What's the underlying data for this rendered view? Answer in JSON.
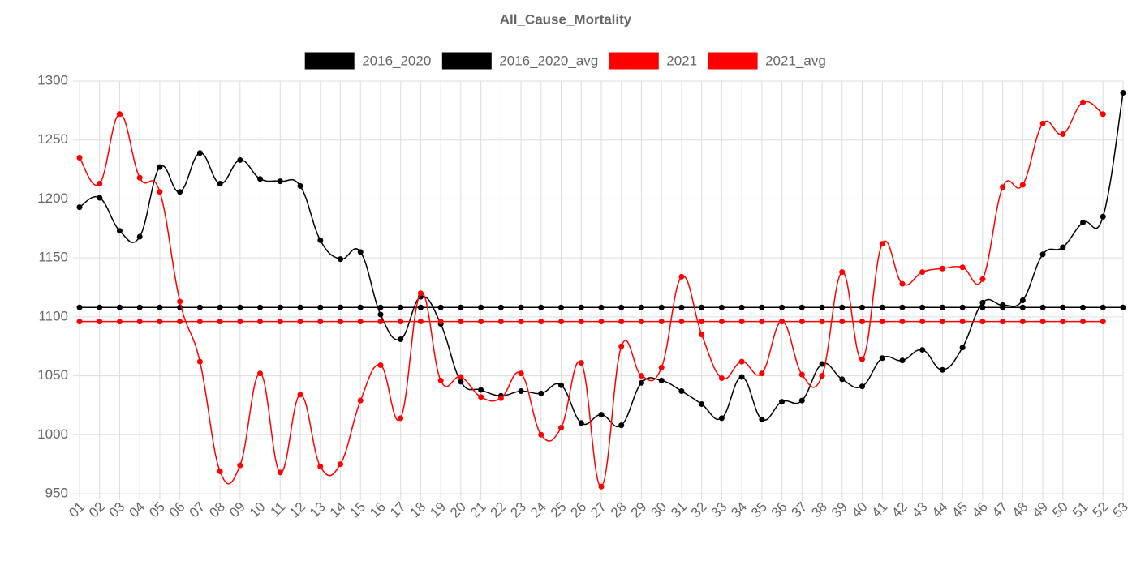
{
  "chart_data": {
    "type": "line",
    "title": "All_Cause_Mortality",
    "categories": [
      "01",
      "02",
      "03",
      "04",
      "05",
      "06",
      "07",
      "08",
      "09",
      "10",
      "11",
      "12",
      "13",
      "14",
      "15",
      "16",
      "17",
      "18",
      "19",
      "20",
      "21",
      "22",
      "23",
      "24",
      "25",
      "26",
      "27",
      "28",
      "29",
      "30",
      "31",
      "32",
      "33",
      "34",
      "35",
      "36",
      "37",
      "38",
      "39",
      "40",
      "41",
      "42",
      "43",
      "44",
      "45",
      "46",
      "47",
      "48",
      "49",
      "50",
      "51",
      "52",
      "53"
    ],
    "series": [
      {
        "name": "2016_2020",
        "color": "#000000",
        "values": [
          1193,
          1201,
          1173,
          1168,
          1227,
          1206,
          1239,
          1213,
          1233,
          1217,
          1215,
          1211,
          1165,
          1149,
          1155,
          1102,
          1081,
          1117,
          1094,
          1045,
          1038,
          1033,
          1037,
          1035,
          1042,
          1010,
          1017,
          1008,
          1044,
          1046,
          1037,
          1026,
          1014,
          1049,
          1013,
          1028,
          1029,
          1060,
          1047,
          1041,
          1065,
          1063,
          1072,
          1055,
          1074,
          1112,
          1110,
          1114,
          1153,
          1159,
          1180,
          1185,
          1290
        ]
      },
      {
        "name": "2016_2020_avg",
        "color": "#000000",
        "values": [
          1108,
          1108,
          1108,
          1108,
          1108,
          1108,
          1108,
          1108,
          1108,
          1108,
          1108,
          1108,
          1108,
          1108,
          1108,
          1108,
          1108,
          1108,
          1108,
          1108,
          1108,
          1108,
          1108,
          1108,
          1108,
          1108,
          1108,
          1108,
          1108,
          1108,
          1108,
          1108,
          1108,
          1108,
          1108,
          1108,
          1108,
          1108,
          1108,
          1108,
          1108,
          1108,
          1108,
          1108,
          1108,
          1108,
          1108,
          1108,
          1108,
          1108,
          1108,
          1108,
          1108
        ]
      },
      {
        "name": "2021",
        "color": "#ff0000",
        "values": [
          1235,
          1213,
          1272,
          1218,
          1206,
          1113,
          1062,
          969,
          974,
          1052,
          968,
          1034,
          973,
          975,
          1029,
          1059,
          1014,
          1120,
          1046,
          1049,
          1032,
          1031,
          1052,
          1000,
          1006,
          1061,
          956,
          1075,
          1050,
          1057,
          1134,
          1085,
          1048,
          1062,
          1052,
          1096,
          1051,
          1050,
          1138,
          1064,
          1162,
          1128,
          1138,
          1141,
          1142,
          1132,
          1210,
          1212,
          1264,
          1255,
          1282,
          1272,
          null
        ]
      },
      {
        "name": "2021_avg",
        "color": "#ff0000",
        "values": [
          1096,
          1096,
          1096,
          1096,
          1096,
          1096,
          1096,
          1096,
          1096,
          1096,
          1096,
          1096,
          1096,
          1096,
          1096,
          1096,
          1096,
          1096,
          1096,
          1096,
          1096,
          1096,
          1096,
          1096,
          1096,
          1096,
          1096,
          1096,
          1096,
          1096,
          1096,
          1096,
          1096,
          1096,
          1096,
          1096,
          1096,
          1096,
          1096,
          1096,
          1096,
          1096,
          1096,
          1096,
          1096,
          1096,
          1096,
          1096,
          1096,
          1096,
          1096,
          1096,
          null
        ]
      }
    ],
    "ylim": [
      950,
      1300
    ],
    "yticks": [
      950,
      1000,
      1050,
      1100,
      1150,
      1200,
      1250,
      1300
    ],
    "grid": true
  }
}
